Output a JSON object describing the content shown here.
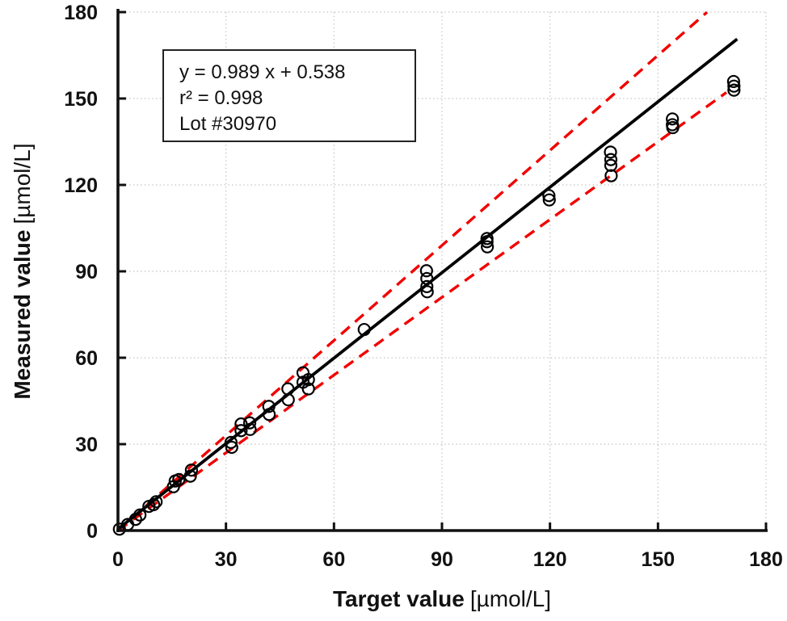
{
  "figure": {
    "background": "#ffffff",
    "text_color": "#111111"
  },
  "chart_data": {
    "type": "scatter",
    "title": "",
    "xlabel": "Target value",
    "xlabel_unit": "[µmol/L]",
    "ylabel": "Measured value",
    "ylabel_unit": "[µmol/L]",
    "xlim": [
      0,
      180
    ],
    "ylim": [
      0,
      180
    ],
    "xticks": [
      0,
      30,
      60,
      90,
      120,
      150,
      180
    ],
    "yticks": [
      0,
      30,
      60,
      90,
      120,
      150,
      180
    ],
    "grid": {
      "show": true,
      "style": "dotted",
      "color": "#c3c3c3"
    },
    "annotation": {
      "lines": [
        "y = 0.989 x + 0.538",
        "r² = 0.998",
        "Lot #30970"
      ]
    },
    "regression_line": {
      "name": "regression-line",
      "slope": 0.989,
      "intercept": 0.538,
      "x_range": [
        0,
        172
      ],
      "color": "#000000",
      "style": "solid"
    },
    "limit_lines": [
      {
        "name": "upper-limit-line",
        "slope": 1.1,
        "intercept": 0,
        "x_range": [
          0,
          163.6
        ],
        "color": "#f10000",
        "style": "dashed"
      },
      {
        "name": "lower-limit-line",
        "slope": 0.9,
        "intercept": 0,
        "x_range": [
          0,
          169.0
        ],
        "color": "#f10000",
        "style": "dashed"
      }
    ],
    "marker": {
      "shape": "open-circle",
      "color": "#000000"
    },
    "points": [
      [
        0.4,
        0.5
      ],
      [
        2.7,
        2.1
      ],
      [
        4.9,
        3.9
      ],
      [
        6.1,
        5.4
      ],
      [
        8.6,
        8.4
      ],
      [
        9.9,
        9.0
      ],
      [
        10.6,
        10.0
      ],
      [
        15.4,
        15.2
      ],
      [
        15.9,
        17.2
      ],
      [
        16.9,
        17.7
      ],
      [
        20.1,
        18.9
      ],
      [
        20.4,
        21.0
      ],
      [
        31.4,
        30.6
      ],
      [
        31.6,
        28.9
      ],
      [
        34.2,
        37.0
      ],
      [
        34.2,
        34.7
      ],
      [
        36.6,
        37.4
      ],
      [
        36.7,
        35.1
      ],
      [
        41.9,
        43.1
      ],
      [
        42.0,
        40.3
      ],
      [
        47.2,
        49.2
      ],
      [
        47.3,
        45.4
      ],
      [
        51.4,
        54.8
      ],
      [
        51.4,
        51.5
      ],
      [
        52.9,
        52.4
      ],
      [
        52.9,
        49.2
      ],
      [
        68.4,
        69.8
      ],
      [
        85.7,
        90.2
      ],
      [
        85.8,
        87.5
      ],
      [
        85.8,
        84.7
      ],
      [
        85.9,
        82.9
      ],
      [
        102.5,
        101.4
      ],
      [
        102.5,
        100.3
      ],
      [
        102.6,
        98.5
      ],
      [
        119.7,
        116.3
      ],
      [
        119.8,
        114.8
      ],
      [
        136.8,
        131.4
      ],
      [
        136.9,
        128.8
      ],
      [
        136.9,
        126.8
      ],
      [
        137.0,
        123.2
      ],
      [
        154.0,
        142.9
      ],
      [
        154.0,
        140.9
      ],
      [
        154.1,
        139.9
      ],
      [
        171.0,
        155.9
      ],
      [
        171.1,
        154.3
      ],
      [
        171.1,
        152.9
      ]
    ]
  }
}
